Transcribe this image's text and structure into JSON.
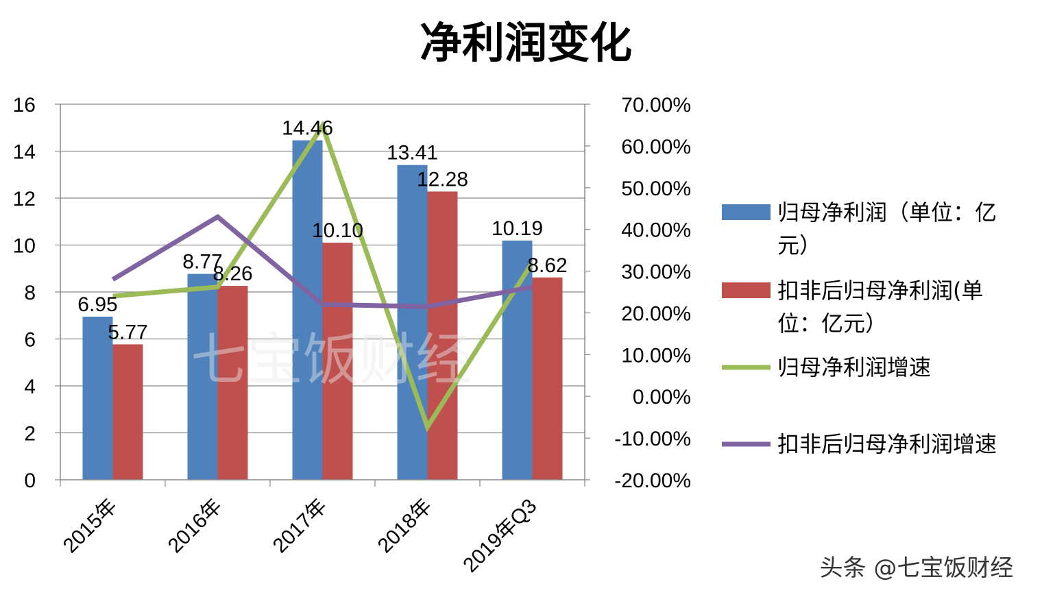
{
  "chart_data": {
    "type": "bar",
    "title": "净利润变化",
    "categories": [
      "2015年",
      "2016年",
      "2017年",
      "2018年",
      "2019年Q3"
    ],
    "series": [
      {
        "name": "归母净利润（单位：亿元）",
        "type": "bar",
        "axis": "left",
        "color": "#4f81bd",
        "values": [
          6.95,
          8.77,
          14.46,
          13.41,
          10.19
        ]
      },
      {
        "name": "扣非后归母净利润(单位：亿元）",
        "type": "bar",
        "axis": "left",
        "color": "#c0504d",
        "values": [
          5.77,
          8.26,
          10.1,
          12.28,
          8.62
        ]
      },
      {
        "name": "归母净利润增速",
        "type": "line",
        "axis": "right",
        "color": "#9bbb59",
        "values": [
          0.24,
          0.262,
          0.648,
          -0.073,
          0.32
        ]
      },
      {
        "name": "扣非后归母净利润增速",
        "type": "line",
        "axis": "right",
        "color": "#8064a2",
        "values": [
          0.28,
          0.43,
          0.22,
          0.215,
          0.262
        ]
      }
    ],
    "data_labels": {
      "归母净利润（单位：亿元）": [
        "6.95",
        "8.77",
        "14.46",
        "13.41",
        "10.19"
      ],
      "扣非后归母净利润(单位：亿元）": [
        "5.77",
        "8.26",
        "10.10",
        "12.28",
        "8.62"
      ]
    },
    "y_left": {
      "min": 0,
      "max": 16,
      "ticks": [
        "0",
        "2",
        "4",
        "6",
        "8",
        "10",
        "12",
        "14",
        "16"
      ]
    },
    "y_right": {
      "min": -0.2,
      "max": 0.7,
      "ticks": [
        "-20.00%",
        "-10.00%",
        "0.00%",
        "10.00%",
        "20.00%",
        "30.00%",
        "40.00%",
        "50.00%",
        "60.00%",
        "70.00%"
      ]
    },
    "grid": true,
    "legend_position": "right"
  },
  "legend_lines": [
    [
      "归母净利润（单位：亿",
      "元）"
    ],
    [
      "扣非后归母净利润(单",
      "位：亿元）"
    ],
    [
      "归母净利润增速"
    ],
    [
      "扣非后归母净利润增速"
    ]
  ],
  "watermark": "七宝饭财经",
  "source_text": "头条 @七宝饭财经"
}
